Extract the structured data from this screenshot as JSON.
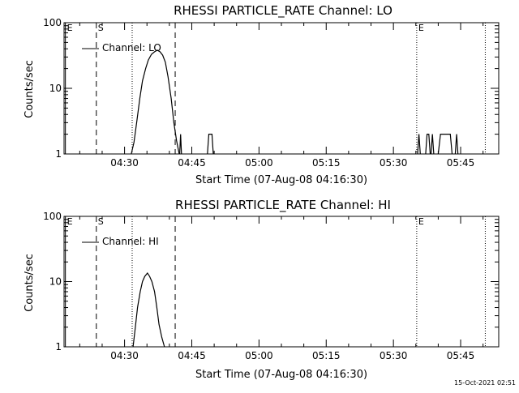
{
  "footer_timestamp": "15-Oct-2021 02:51",
  "chart_data": [
    {
      "type": "line",
      "title": "RHESSI PARTICLE_RATE Channel: LO",
      "xlabel": "Start Time (07-Aug-08 04:16:30)",
      "ylabel": "Counts/sec",
      "xscale": "time",
      "x_units": "minutes after 04:16:30",
      "xlim": [
        0,
        97
      ],
      "yscale": "log",
      "ylim": [
        1,
        100
      ],
      "xticks": [
        {
          "t": 13.5,
          "label": "04:30"
        },
        {
          "t": 28.5,
          "label": "04:45"
        },
        {
          "t": 43.5,
          "label": "05:00"
        },
        {
          "t": 58.5,
          "label": "05:15"
        },
        {
          "t": 73.5,
          "label": "05:30"
        },
        {
          "t": 88.5,
          "label": "05:45"
        }
      ],
      "yticks": [
        {
          "v": 1,
          "label": "1"
        },
        {
          "v": 10,
          "label": "10"
        },
        {
          "v": 100,
          "label": "100"
        }
      ],
      "legend": {
        "text": "Channel: LO",
        "position": "top-left"
      },
      "markers": [
        {
          "t": 0.3,
          "label": "E",
          "style": "solid"
        },
        {
          "t": 7.2,
          "label": "S",
          "style": "dashed"
        },
        {
          "t": 15.2,
          "label": "",
          "style": "dotted"
        },
        {
          "t": 24.8,
          "label": "",
          "style": "dashed"
        },
        {
          "t": 78.7,
          "label": "E",
          "style": "dotted"
        },
        {
          "t": 94.0,
          "label": "",
          "style": "dotted"
        }
      ],
      "series": [
        {
          "x": [
            15.0,
            15.6,
            16.2,
            16.9,
            17.5,
            18.2,
            18.8,
            19.5,
            20.2,
            20.8,
            21.4,
            22.0,
            22.6,
            23.2,
            23.9,
            24.5,
            25.1,
            25.7
          ],
          "y": [
            1.0,
            1.5,
            3.0,
            7.0,
            13.0,
            20.0,
            27.0,
            33.0,
            36.0,
            38.0,
            36.0,
            32.0,
            25.0,
            15.0,
            7.0,
            3.0,
            1.6,
            1.0
          ]
        },
        {
          "x": [
            25.8,
            26.0,
            26.2
          ],
          "y": [
            1.0,
            2.0,
            1.0
          ]
        },
        {
          "x": [
            32.0,
            32.3,
            33.0,
            33.3
          ],
          "y": [
            1.0,
            2.0,
            2.0,
            1.0
          ]
        },
        {
          "x": [
            78.9,
            79.2,
            79.5
          ],
          "y": [
            1.0,
            2.0,
            1.0
          ]
        },
        {
          "x": [
            80.7,
            81.0,
            81.4,
            81.7
          ],
          "y": [
            1.0,
            2.0,
            2.0,
            1.0
          ]
        },
        {
          "x": [
            81.9,
            82.2,
            82.5
          ],
          "y": [
            1.0,
            2.0,
            1.0
          ]
        },
        {
          "x": [
            83.5,
            84.0,
            86.2,
            86.6
          ],
          "y": [
            1.0,
            2.0,
            2.0,
            1.0
          ]
        },
        {
          "x": [
            87.3,
            87.6,
            87.9
          ],
          "y": [
            1.0,
            2.0,
            1.0
          ]
        }
      ]
    },
    {
      "type": "line",
      "title": "RHESSI PARTICLE_RATE Channel: HI",
      "xlabel": "Start Time (07-Aug-08 04:16:30)",
      "ylabel": "Counts/sec",
      "xscale": "time",
      "x_units": "minutes after 04:16:30",
      "xlim": [
        0,
        97
      ],
      "yscale": "log",
      "ylim": [
        1,
        100
      ],
      "xticks": [
        {
          "t": 13.5,
          "label": "04:30"
        },
        {
          "t": 28.5,
          "label": "04:45"
        },
        {
          "t": 43.5,
          "label": "05:00"
        },
        {
          "t": 58.5,
          "label": "05:15"
        },
        {
          "t": 73.5,
          "label": "05:30"
        },
        {
          "t": 88.5,
          "label": "05:45"
        }
      ],
      "yticks": [
        {
          "v": 1,
          "label": "1"
        },
        {
          "v": 10,
          "label": "10"
        },
        {
          "v": 100,
          "label": "100"
        }
      ],
      "legend": {
        "text": "Channel: HI",
        "position": "top-left"
      },
      "markers": [
        {
          "t": 0.3,
          "label": "E",
          "style": "solid"
        },
        {
          "t": 7.2,
          "label": "S",
          "style": "dashed"
        },
        {
          "t": 15.2,
          "label": "",
          "style": "dotted"
        },
        {
          "t": 24.8,
          "label": "",
          "style": "dashed"
        },
        {
          "t": 78.7,
          "label": "E",
          "style": "dotted"
        },
        {
          "t": 94.0,
          "label": "",
          "style": "dotted"
        }
      ],
      "series": [
        {
          "x": [
            15.4,
            15.9,
            16.4,
            17.0,
            17.5,
            18.0,
            18.6,
            19.1,
            19.6,
            20.2,
            20.7,
            21.2,
            21.8,
            22.4
          ],
          "y": [
            1.0,
            2.0,
            4.0,
            7.0,
            10.0,
            12.0,
            13.5,
            12.0,
            10.0,
            7.0,
            4.0,
            2.2,
            1.4,
            1.0
          ]
        }
      ]
    }
  ]
}
